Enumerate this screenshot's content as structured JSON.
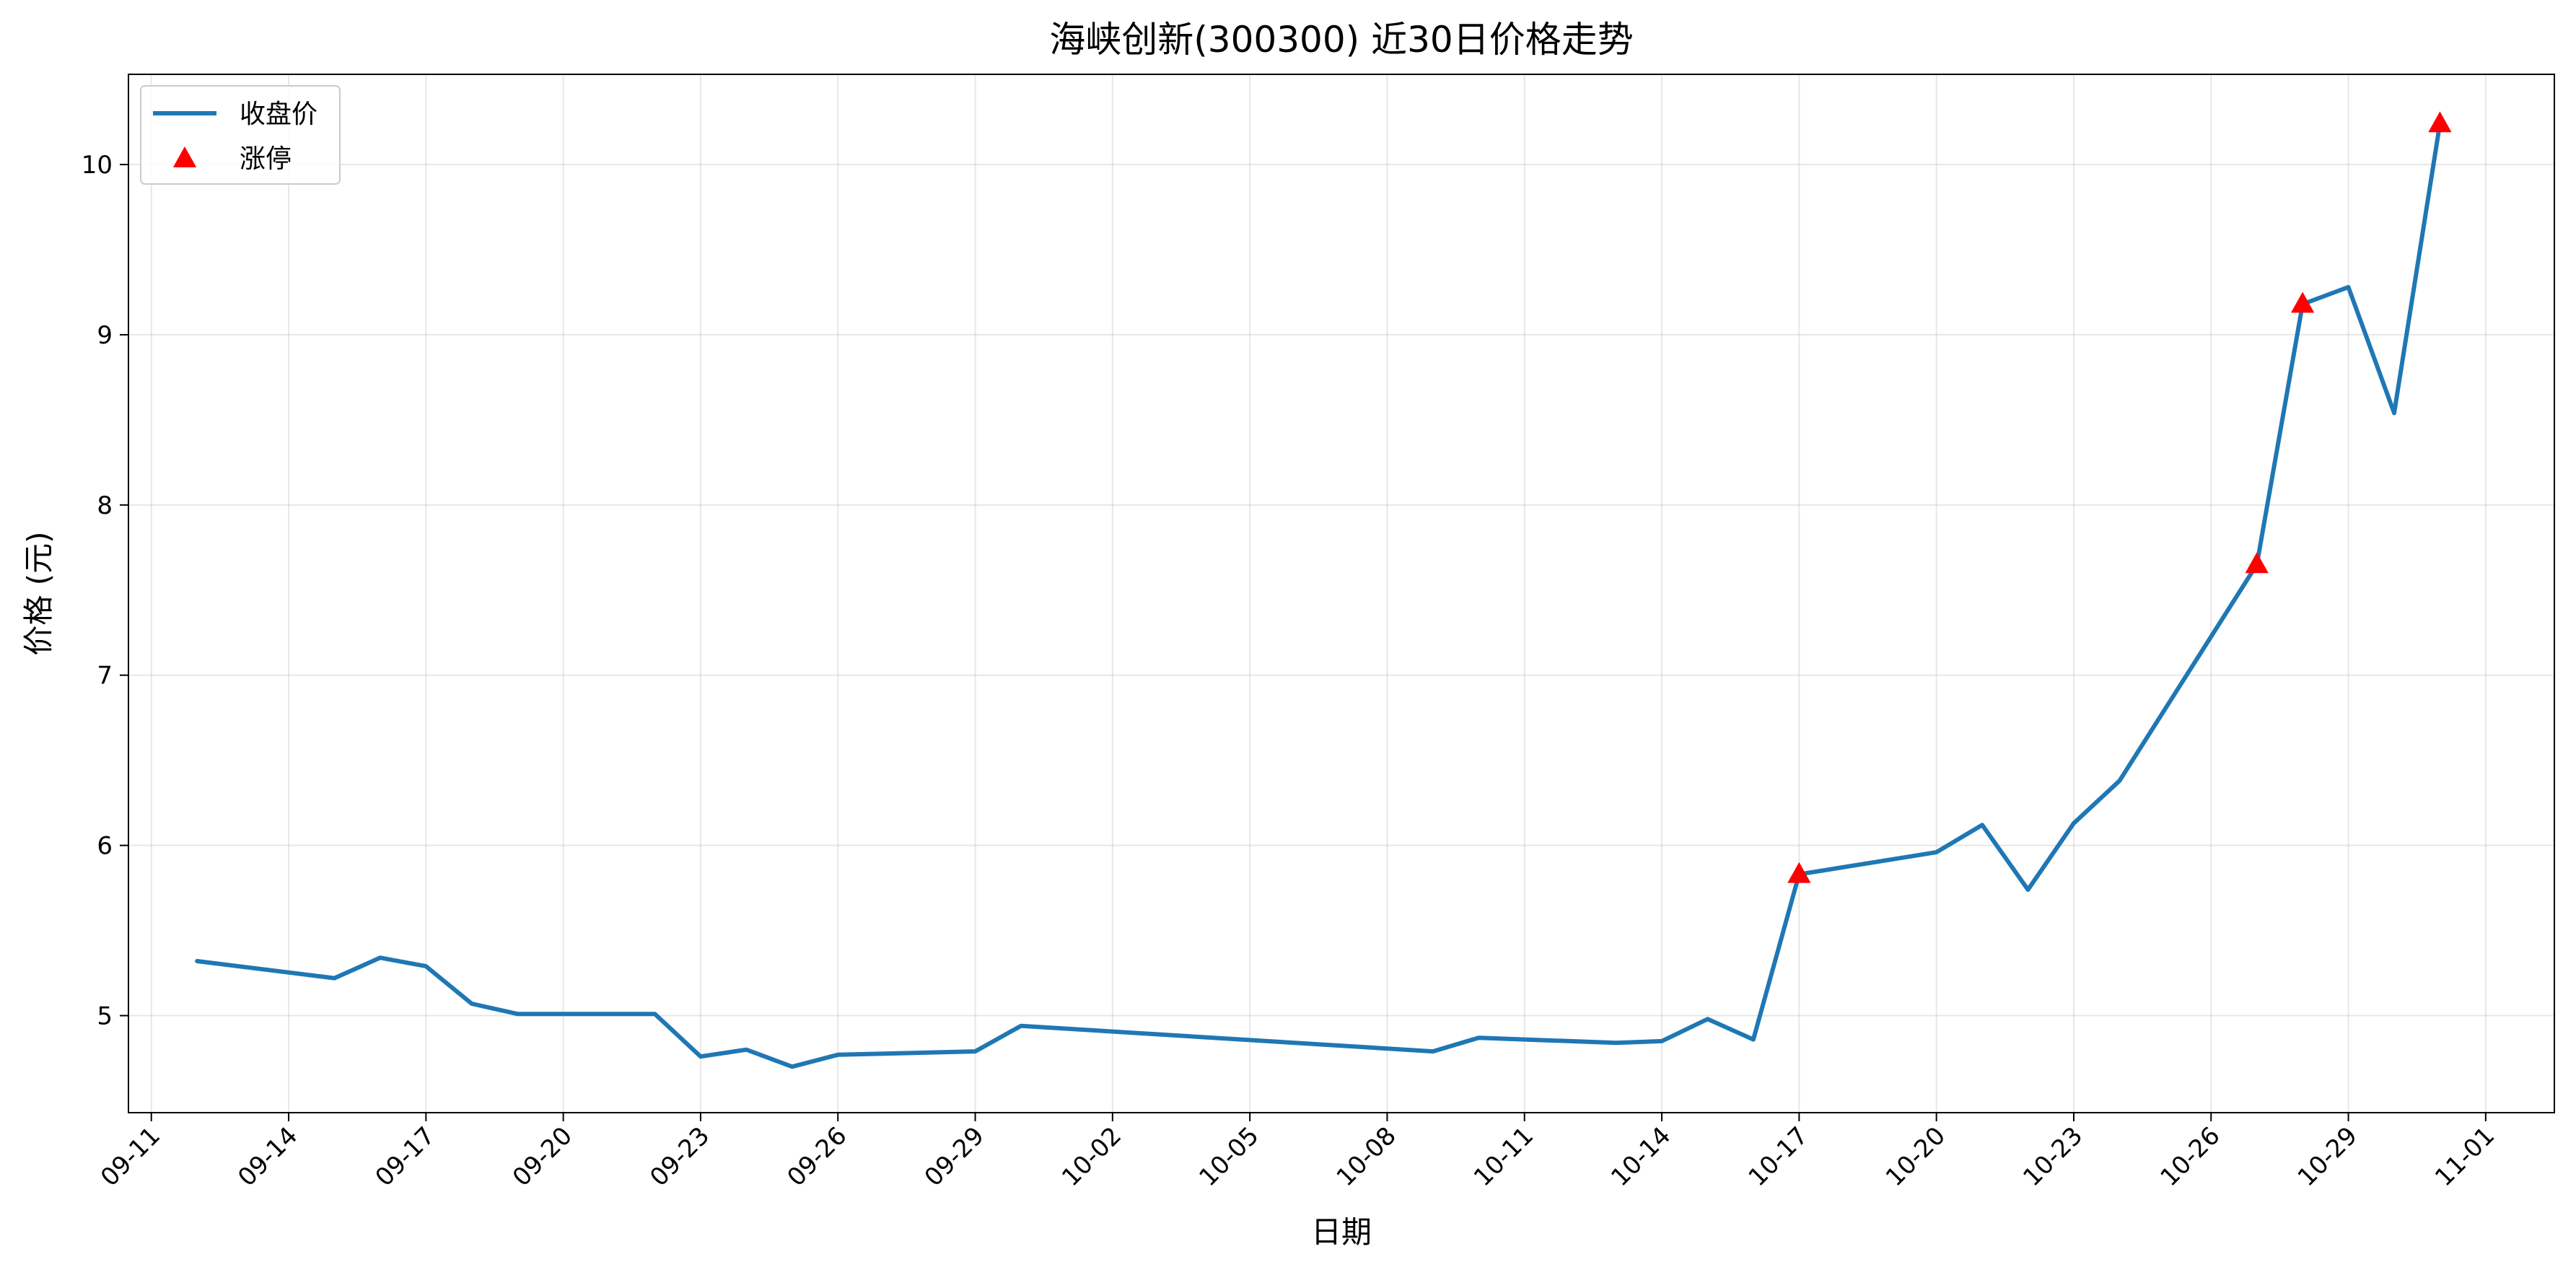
{
  "chart_data": {
    "type": "line",
    "title": "海峡创新(300300) 近30日价格走势",
    "xlabel": "日期",
    "ylabel": "价格 (元)",
    "x_ticks": [
      "09-11",
      "09-14",
      "09-17",
      "09-20",
      "09-23",
      "09-26",
      "09-29",
      "10-02",
      "10-05",
      "10-08",
      "10-11",
      "10-14",
      "10-17",
      "10-20",
      "10-23",
      "10-26",
      "10-29",
      "11-01"
    ],
    "y_ticks": [
      5,
      6,
      7,
      8,
      9,
      10
    ],
    "ylim": [
      4.43,
      10.53
    ],
    "xlim": [
      "09-10",
      "11-02"
    ],
    "grid": true,
    "legend_position": "top-left",
    "colors": {
      "line": "#1f77b4",
      "marker": "#ff0000"
    },
    "series": [
      {
        "name": "收盘价",
        "style": "line",
        "x": [
          "09-12",
          "09-15",
          "09-16",
          "09-17",
          "09-18",
          "09-19",
          "09-22",
          "09-23",
          "09-24",
          "09-25",
          "09-26",
          "09-29",
          "09-30",
          "10-09",
          "10-10",
          "10-13",
          "10-14",
          "10-15",
          "10-16",
          "10-17",
          "10-20",
          "10-21",
          "10-22",
          "10-23",
          "10-24",
          "10-27",
          "10-28",
          "10-29",
          "10-30",
          "10-31"
        ],
        "values": [
          5.32,
          5.22,
          5.34,
          5.29,
          5.07,
          5.01,
          5.01,
          4.76,
          4.8,
          4.7,
          4.77,
          4.79,
          4.94,
          4.79,
          4.87,
          4.84,
          4.85,
          4.98,
          4.86,
          5.83,
          5.96,
          6.12,
          5.74,
          6.13,
          6.38,
          7.65,
          9.18,
          9.28,
          8.54,
          10.24
        ]
      },
      {
        "name": "涨停",
        "style": "marker",
        "x": [
          "10-17",
          "10-27",
          "10-28",
          "10-31"
        ],
        "values": [
          5.83,
          7.65,
          9.18,
          10.24
        ]
      }
    ]
  }
}
